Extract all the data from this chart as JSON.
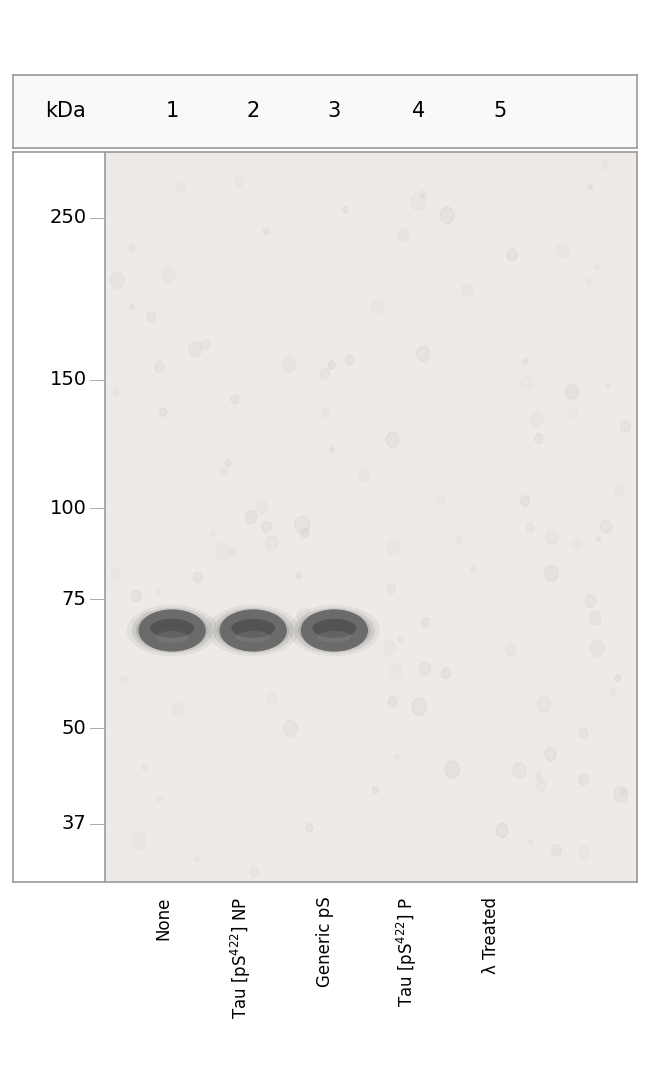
{
  "fig_width": 6.5,
  "fig_height": 10.69,
  "dpi": 100,
  "bg_color": "#ffffff",
  "kda_label": "kDa",
  "lane_numbers": [
    "1",
    "2",
    "3",
    "4",
    "5"
  ],
  "mw_markers": [
    250,
    150,
    100,
    75,
    50,
    37
  ],
  "lane_labels": [
    "None",
    "Tau [pS$^{422}$] NP",
    "Generic pS",
    "Tau [pS$^{422}$] P",
    "λ Treated"
  ],
  "band_lane_indices": [
    0,
    1,
    2
  ],
  "band_color_main": "#636363",
  "band_color_dark": "#404040",
  "header_label_fontsize": 15,
  "mw_label_fontsize": 14,
  "lane_label_fontsize": 12
}
